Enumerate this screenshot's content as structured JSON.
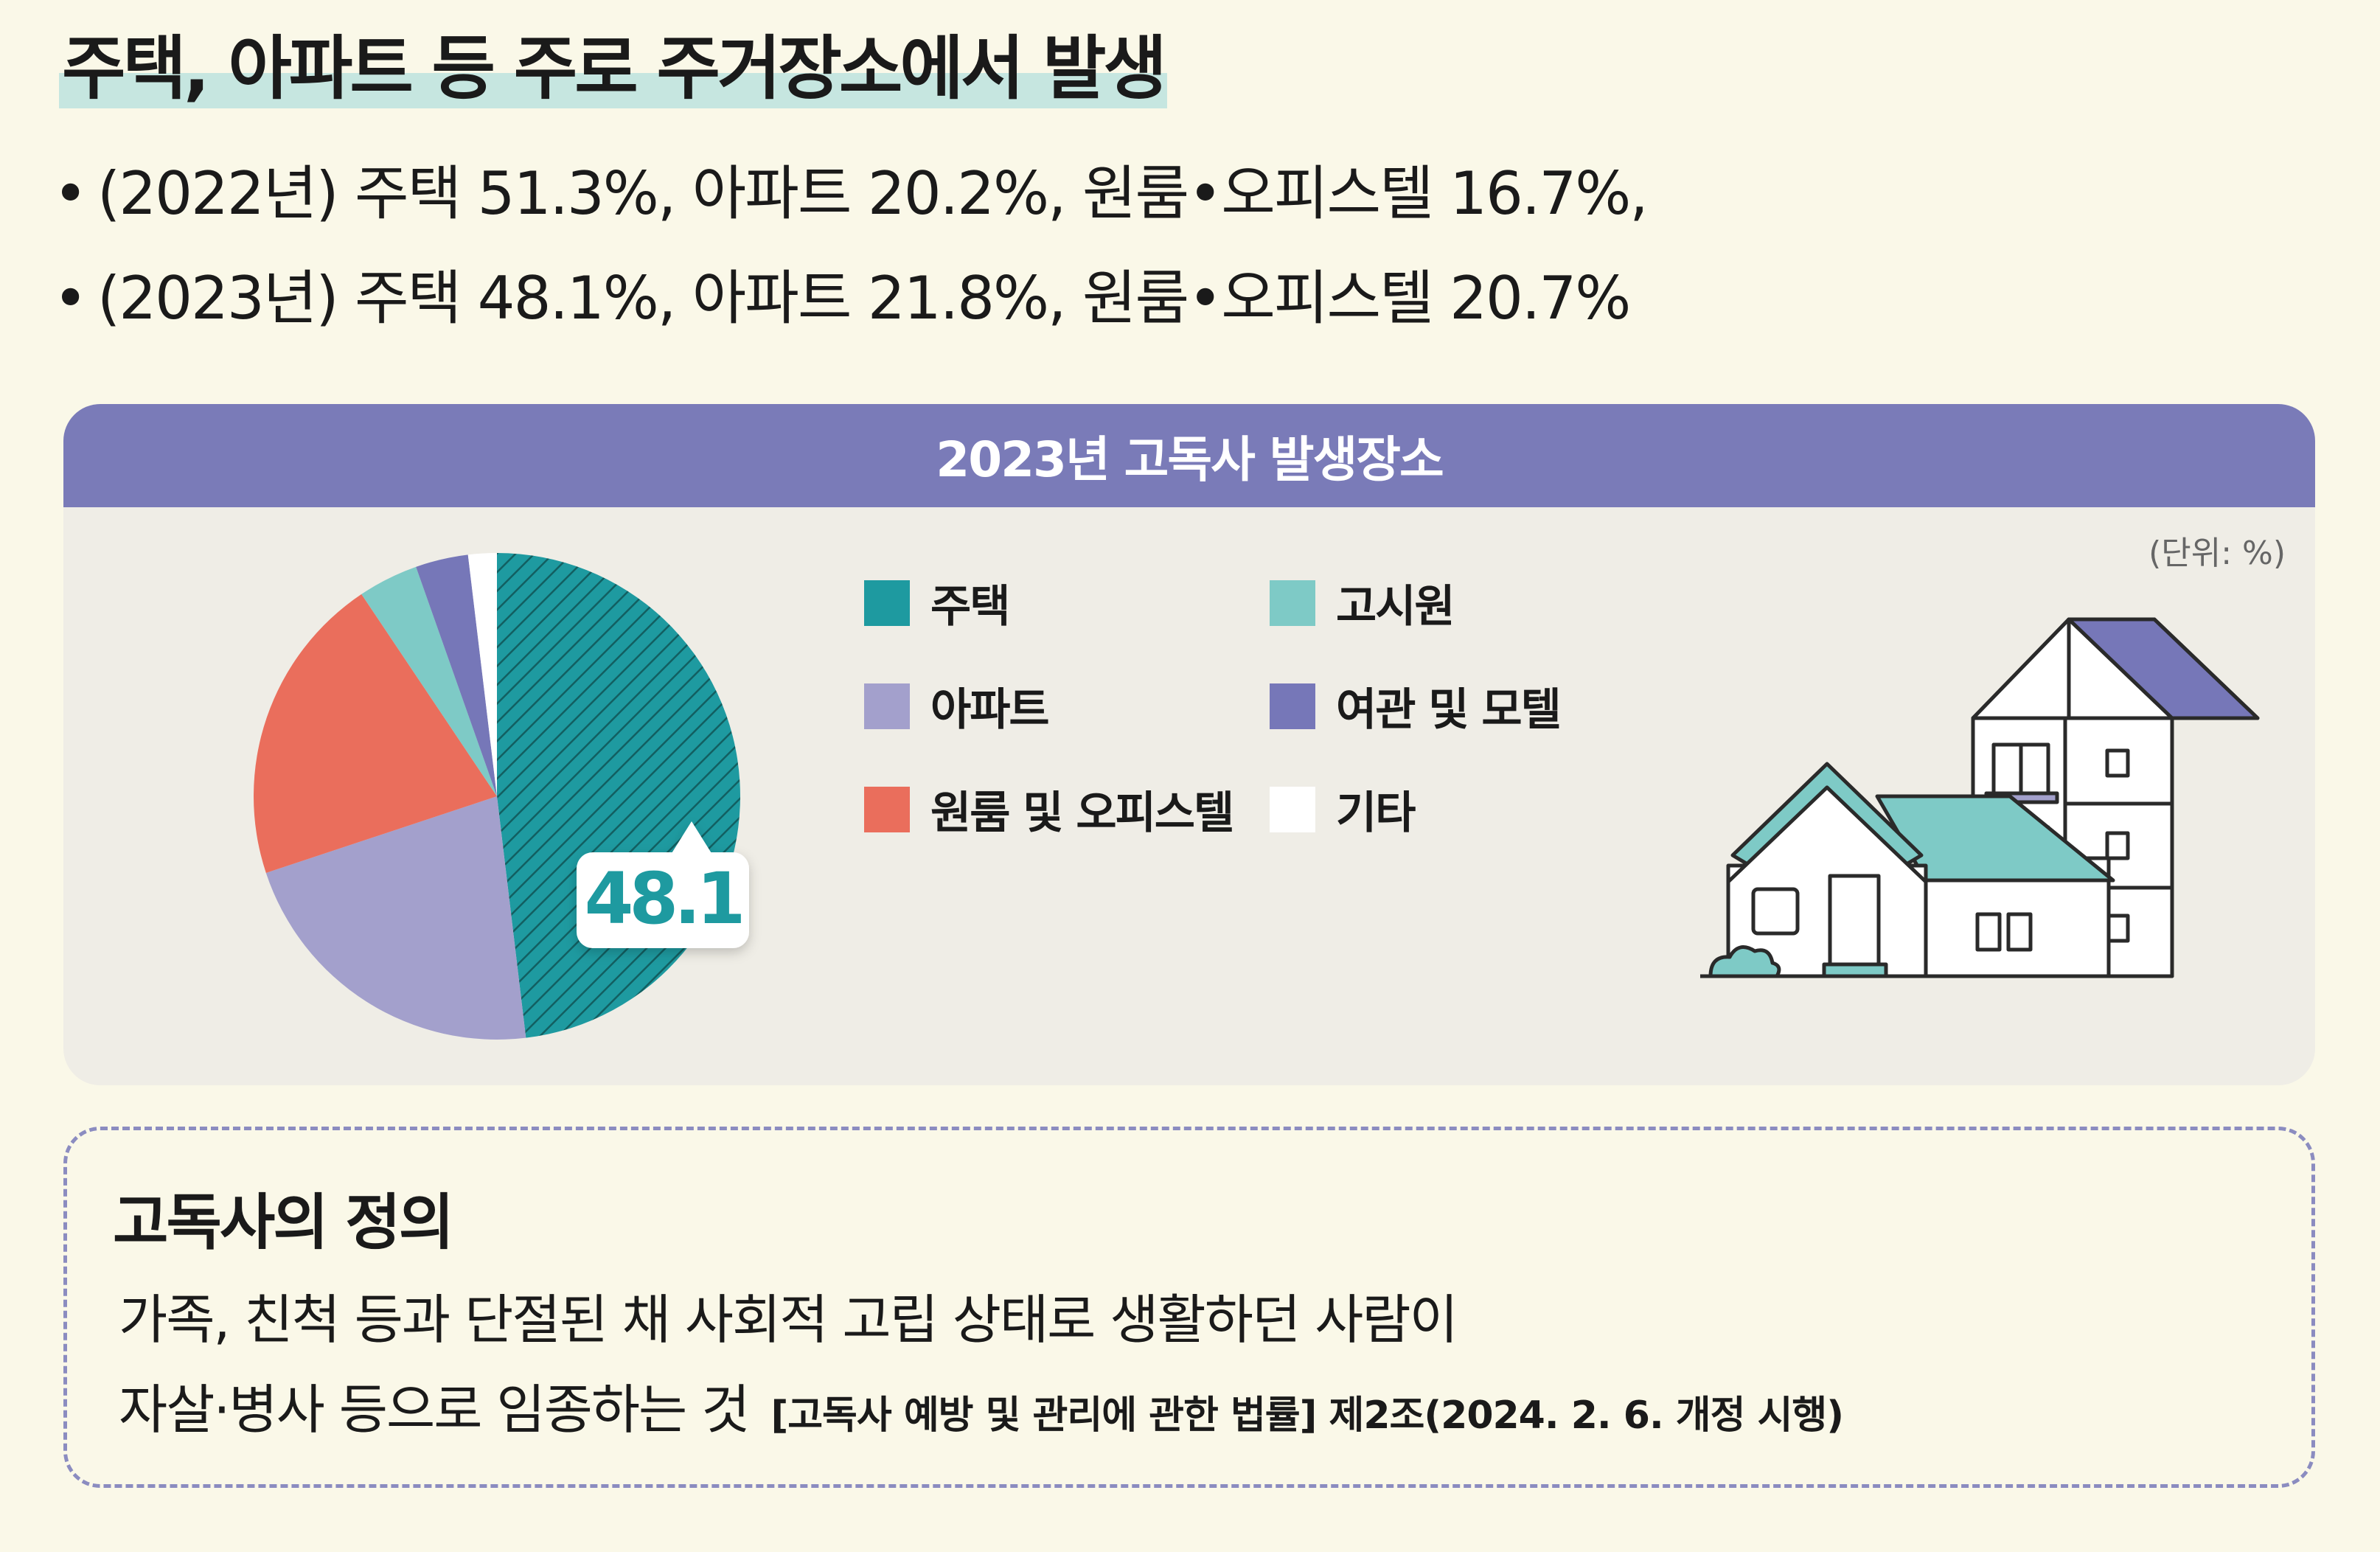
{
  "title": "주택, 아파트 등 주로 주거장소에서 발생",
  "bullets": [
    "(2022년) 주택 51.3%, 아파트 20.2%, 원룸•오피스텔 16.7%,",
    "(2023년) 주택 48.1%, 아파트 21.8%, 원룸•오피스텔 20.7%"
  ],
  "bullet_marker": "•",
  "chart_data": {
    "type": "pie",
    "title": "2023년 고독사 발생장소",
    "unit_label": "(단위: %)",
    "categories": [
      "주택",
      "아파트",
      "원룸 및 오피스텔",
      "고시원",
      "여관 및 모텔",
      "기타"
    ],
    "values": [
      48.1,
      21.8,
      20.7,
      4.0,
      3.5,
      1.9
    ],
    "colors": [
      "#1e9aa0",
      "#a3a0cc",
      "#ea6e5c",
      "#7ecac6",
      "#7677b8",
      "#ffffff"
    ],
    "highlight": {
      "category": "주택",
      "label": "48.1",
      "pattern": "diagonal-hatch"
    },
    "legend_placement": "right"
  },
  "definition": {
    "title": "고독사의 정의",
    "line1": "가족, 친척 등과 단절된 채 사회적 고립 상태로 생활하던 사람이",
    "line2": "자살·병사 등으로 임종하는 것",
    "law_reference": "[고독사 예방 및 관리에 관한 법률] 제2조(2024. 2. 6. 개정 시행)"
  }
}
